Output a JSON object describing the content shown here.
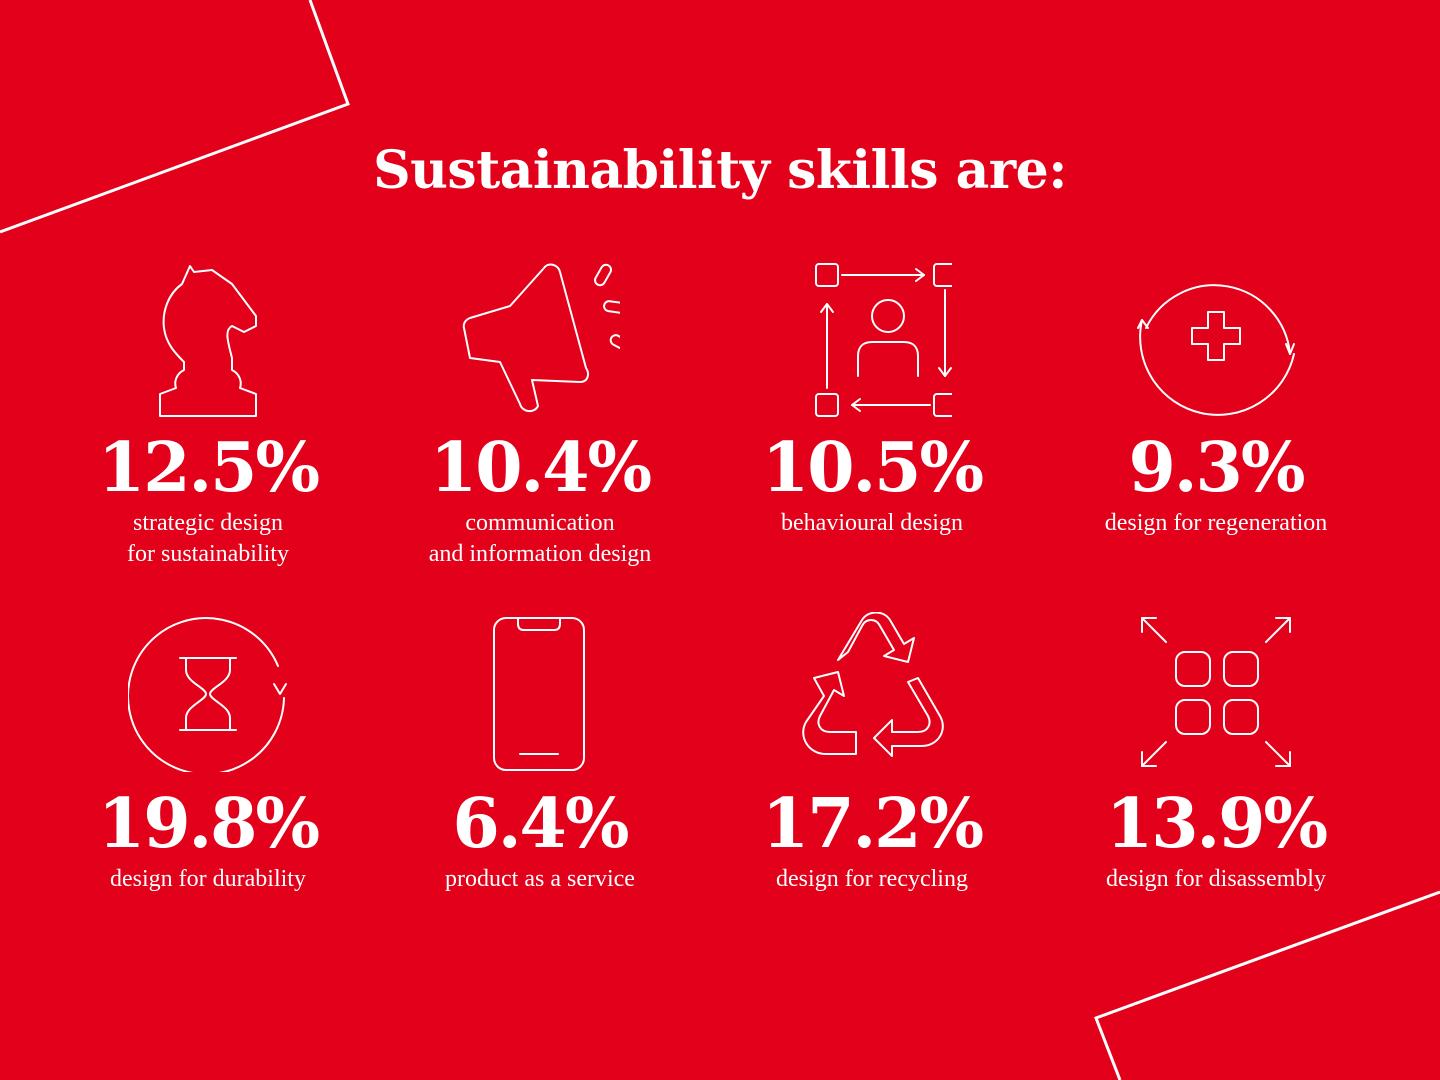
{
  "title": "Sustainability skills are:",
  "colors": {
    "background": "#e2001a",
    "foreground": "#ffffff"
  },
  "stats": [
    {
      "icon": "chess-knight-icon",
      "value": "12.5%",
      "label_lines": [
        "strategic design",
        "for sustainability"
      ]
    },
    {
      "icon": "megaphone-icon",
      "value": "10.4%",
      "label_lines": [
        "communication",
        "and information design"
      ]
    },
    {
      "icon": "behaviour-cycle-icon",
      "value": "10.5%",
      "label_lines": [
        "behavioural design",
        ""
      ]
    },
    {
      "icon": "regeneration-plus-icon",
      "value": "9.3%",
      "label_lines": [
        "design for regeneration",
        ""
      ]
    },
    {
      "icon": "hourglass-cycle-icon",
      "value": "19.8%",
      "label_lines": [
        "design for durability",
        ""
      ]
    },
    {
      "icon": "smartphone-icon",
      "value": "6.4%",
      "label_lines": [
        "product as a service",
        ""
      ]
    },
    {
      "icon": "recycle-icon",
      "value": "17.2%",
      "label_lines": [
        "design for recycling",
        ""
      ]
    },
    {
      "icon": "disassembly-icon",
      "value": "13.9%",
      "label_lines": [
        "design for disassembly",
        ""
      ]
    }
  ]
}
